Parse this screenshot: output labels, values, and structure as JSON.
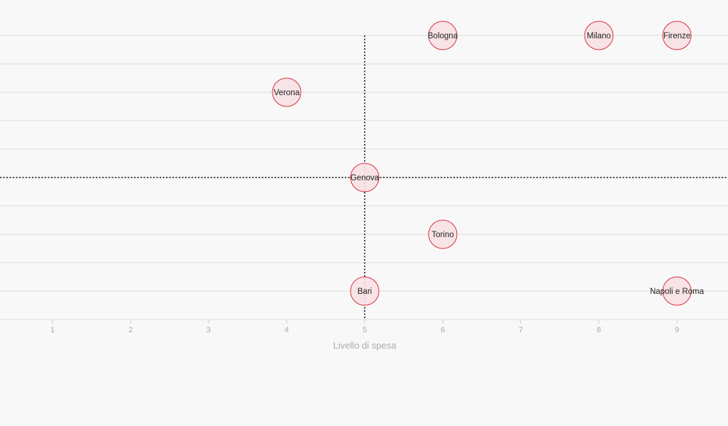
{
  "chart_data": {
    "type": "scatter",
    "title": "",
    "xlabel": "Livello di spesa",
    "ylabel": "",
    "xlim": [
      0.33,
      9.65
    ],
    "ylim": [
      0,
      10
    ],
    "x_ticks": [
      1,
      2,
      3,
      4,
      5,
      6,
      7,
      8,
      9
    ],
    "y_gridlines": [
      1,
      2,
      3,
      4,
      5,
      6,
      7,
      8,
      9,
      10
    ],
    "y_ticks_labeled": false,
    "grid": true,
    "reference_lines": {
      "x": 5,
      "y": 5
    },
    "points": [
      {
        "label": "Bologna",
        "x": 6,
        "y": 10
      },
      {
        "label": "Milano",
        "x": 8,
        "y": 10
      },
      {
        "label": "Firenze",
        "x": 9,
        "y": 10
      },
      {
        "label": "Verona",
        "x": 4,
        "y": 8
      },
      {
        "label": "Genova",
        "x": 5,
        "y": 5
      },
      {
        "label": "Torino",
        "x": 6,
        "y": 3
      },
      {
        "label": "Bari",
        "x": 5,
        "y": 1
      },
      {
        "label": "Napoli e Roma",
        "x": 9,
        "y": 1
      }
    ],
    "colors": {
      "background": "#f8f8f8",
      "bubble_fill": "#f7e1e4",
      "bubble_stroke": "#d9303a",
      "gridline": "#dddddd",
      "reference_line": "#111111",
      "tick_label": "#aaaaaa",
      "point_label": "#222222"
    }
  }
}
